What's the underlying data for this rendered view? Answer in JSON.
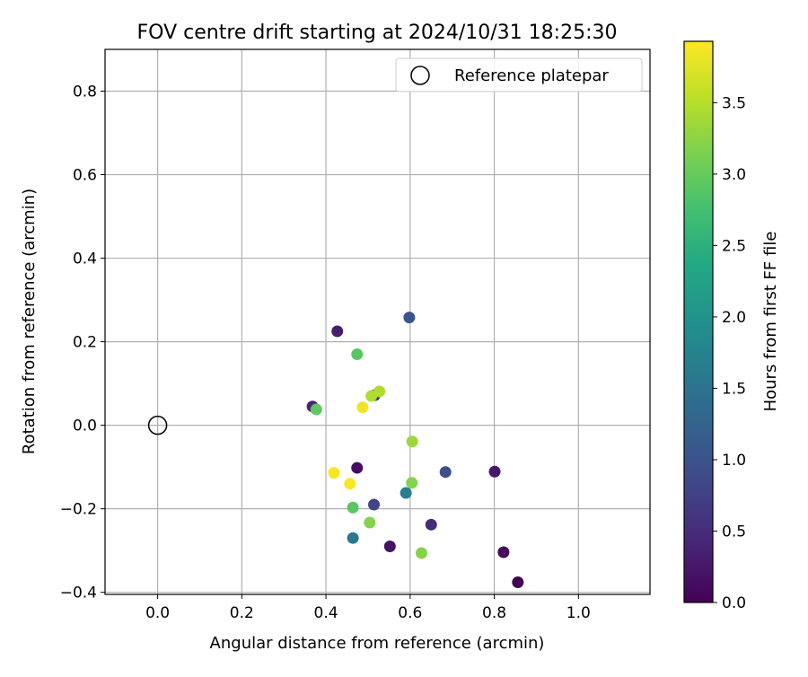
{
  "chart_data": {
    "type": "scatter",
    "title": "FOV centre drift starting at 2024/10/31 18:25:30",
    "xlabel": "Angular distance from reference (arcmin)",
    "ylabel": "Rotation from reference (arcmin)",
    "xlim": [
      -0.125,
      1.17
    ],
    "ylim": [
      -0.405,
      0.9
    ],
    "xticks": [
      0.0,
      0.2,
      0.4,
      0.6,
      0.8,
      1.0
    ],
    "xtick_labels": [
      "0.0",
      "0.2",
      "0.4",
      "0.6",
      "0.8",
      "1.0"
    ],
    "yticks": [
      -0.4,
      -0.2,
      0.0,
      0.2,
      0.4,
      0.6,
      0.8
    ],
    "ytick_labels": [
      "−0.4",
      "−0.2",
      "0.0",
      "0.2",
      "0.4",
      "0.6",
      "0.8"
    ],
    "grid": true,
    "legend": {
      "position": "top-right",
      "label": "Reference platepar"
    },
    "reference_point": {
      "x": 0.0,
      "y": 0.0
    },
    "colormap": "viridis",
    "colorbar": {
      "label": "Hours from first FF file",
      "range": [
        0.0,
        3.93
      ],
      "ticks": [
        0.0,
        0.5,
        1.0,
        1.5,
        2.0,
        2.5,
        3.0,
        3.5
      ],
      "tick_labels": [
        "0.0",
        "0.5",
        "1.0",
        "1.5",
        "2.0",
        "2.5",
        "3.0",
        "3.5"
      ]
    },
    "points": [
      {
        "x": 0.856,
        "y": -0.376,
        "hours": 0.0
      },
      {
        "x": 0.822,
        "y": -0.304,
        "hours": 0.1
      },
      {
        "x": 0.474,
        "y": -0.102,
        "hours": 0.15
      },
      {
        "x": 0.552,
        "y": -0.29,
        "hours": 0.2
      },
      {
        "x": 0.801,
        "y": -0.111,
        "hours": 0.25
      },
      {
        "x": 0.427,
        "y": 0.225,
        "hours": 0.3
      },
      {
        "x": 0.368,
        "y": 0.045,
        "hours": 0.4
      },
      {
        "x": 0.65,
        "y": -0.238,
        "hours": 0.5
      },
      {
        "x": 0.516,
        "y": 0.072,
        "hours": 0.6
      },
      {
        "x": 0.514,
        "y": -0.19,
        "hours": 0.8
      },
      {
        "x": 0.684,
        "y": -0.112,
        "hours": 0.95
      },
      {
        "x": 0.598,
        "y": 0.258,
        "hours": 1.05
      },
      {
        "x": 0.464,
        "y": -0.27,
        "hours": 1.6
      },
      {
        "x": 0.59,
        "y": -0.162,
        "hours": 1.65
      },
      {
        "x": 0.474,
        "y": 0.17,
        "hours": 2.9
      },
      {
        "x": 0.377,
        "y": 0.038,
        "hours": 2.95
      },
      {
        "x": 0.464,
        "y": -0.197,
        "hours": 2.9
      },
      {
        "x": 0.627,
        "y": -0.306,
        "hours": 3.2
      },
      {
        "x": 0.604,
        "y": -0.138,
        "hours": 3.2
      },
      {
        "x": 0.504,
        "y": -0.233,
        "hours": 3.2
      },
      {
        "x": 0.605,
        "y": -0.039,
        "hours": 3.35
      },
      {
        "x": 0.527,
        "y": 0.081,
        "hours": 3.45
      },
      {
        "x": 0.508,
        "y": 0.07,
        "hours": 3.45
      },
      {
        "x": 0.487,
        "y": 0.043,
        "hours": 3.85
      },
      {
        "x": 0.419,
        "y": -0.114,
        "hours": 3.9
      },
      {
        "x": 0.457,
        "y": -0.14,
        "hours": 3.9
      }
    ]
  }
}
